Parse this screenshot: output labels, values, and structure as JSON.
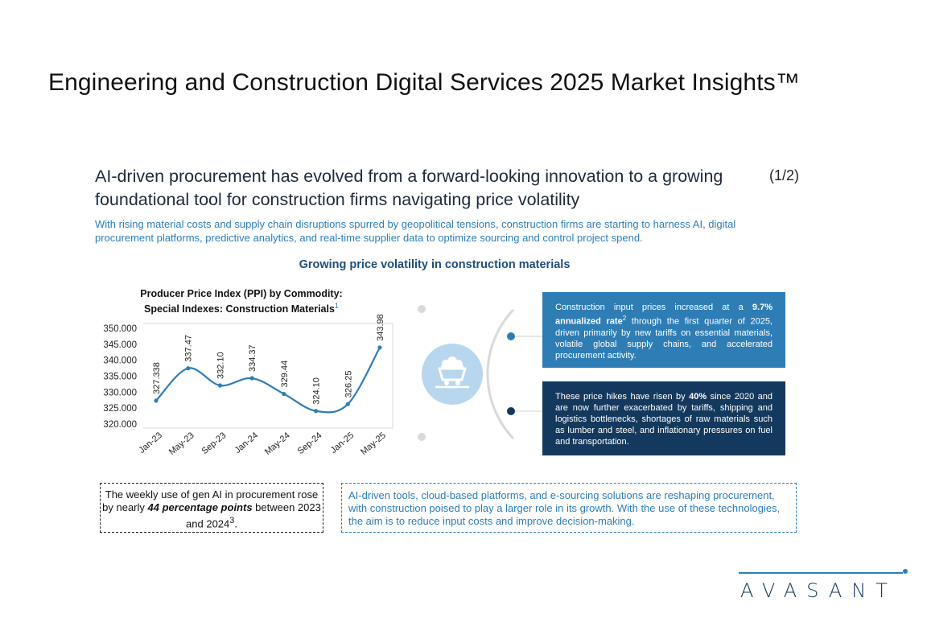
{
  "slide": {
    "title": "Engineering and Construction Digital Services 2025 Market Insights™",
    "headline": "AI-driven procurement has evolved from a forward-looking innovation to a growing foundational tool for construction firms navigating price volatility",
    "page_indicator": "(1/2)",
    "subhead": "With rising material costs and supply chain disruptions spurred by geopolitical tensions, construction firms are starting to harness AI, digital procurement platforms, predictive analytics, and real-time supplier data to optimize sourcing and control project spend.",
    "section_heading": "Growing price volatility in construction materials"
  },
  "chart_title": {
    "line1": "Producer Price Index (PPI) by Commodity:",
    "line2": "Special Indexes: Construction Materials",
    "footnote": "1"
  },
  "chart_data": {
    "type": "line",
    "title": "Producer Price Index (PPI) by Commodity: Special Indexes: Construction Materials",
    "categories": [
      "Jan-23",
      "May-23",
      "Sep-23",
      "Jan-24",
      "May-24",
      "Sep-24",
      "Jan-25",
      "May-25"
    ],
    "values": [
      327.338,
      337.47,
      332.1,
      334.37,
      329.44,
      324.1,
      326.25,
      343.98
    ],
    "data_labels": [
      "327.338",
      "337.47",
      "332.10",
      "334.37",
      "329.44",
      "324.10",
      "326.25",
      "343.98"
    ],
    "y_ticks": [
      320,
      325,
      330,
      335,
      340,
      345,
      350
    ],
    "y_tick_labels": [
      "320.000",
      "325.000",
      "330.000",
      "335.000",
      "340.000",
      "345.000",
      "350.000"
    ],
    "ylim": [
      320,
      350
    ],
    "series_color": "#2e7db5",
    "grid": false
  },
  "callouts": [
    {
      "pre": "Construction input prices increased at a ",
      "bold": "9.7% annualized rate",
      "sup": "2",
      "post": " through the first quarter of 2025, driven primarily by new tariffs on essential materials, volatile global supply chains, and accelerated procurement activity."
    },
    {
      "pre": "These price hikes have risen by ",
      "bold": "40%",
      "post": " since 2020 and are now further exacerbated by tariffs, shipping and logistics bottlenecks, shortages of raw materials such as lumber and steel, and inflationary pressures on fuel and transportation."
    }
  ],
  "stat_box": {
    "pre": "The weekly use of gen AI in procurement rose by nearly ",
    "em": "44 percentage points",
    "post": " between 2023 and 2024",
    "sup": "3",
    "end": "."
  },
  "note_box": "AI-driven tools, cloud-based platforms, and e-sourcing solutions are reshaping procurement, with construction poised to play a larger role in its growth. With the use of these technologies, the aim is to reduce input costs and improve decision-making.",
  "hub": {
    "icon": "mine-cart-icon"
  },
  "logo": {
    "text": "AVASANT"
  },
  "colors": {
    "accent": "#2e7db5",
    "navy": "#14395e",
    "hub_fill": "#b8d7ee",
    "arc": "#d9d9d9"
  }
}
